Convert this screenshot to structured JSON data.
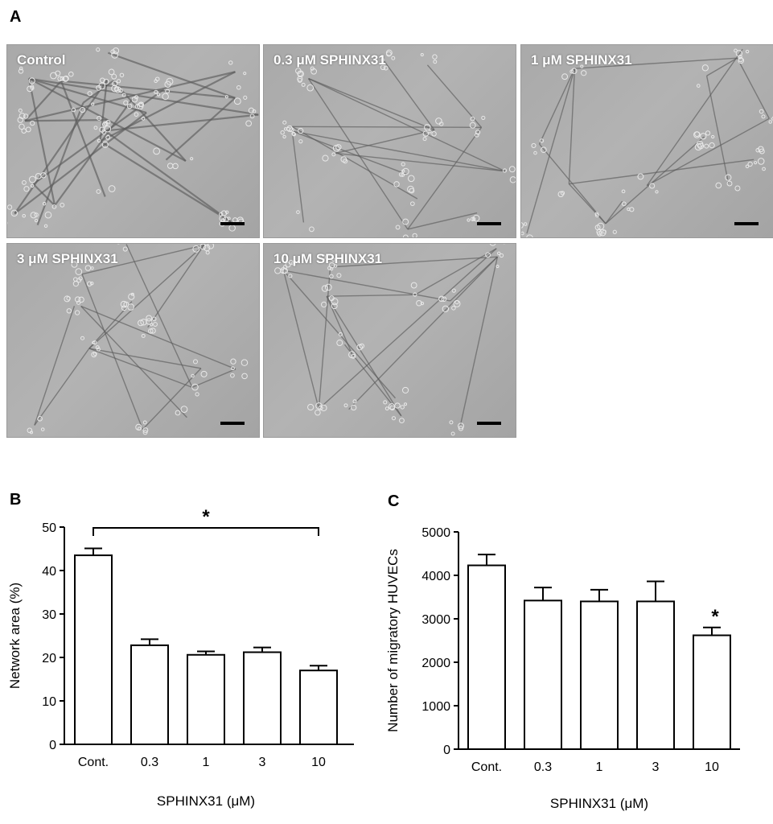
{
  "figure": {
    "panels": {
      "A": "A",
      "B": "B",
      "C": "C"
    },
    "micrographs": [
      {
        "label": "Control"
      },
      {
        "label": "0.3 μM SPHINX31"
      },
      {
        "label": "1 μM SPHINX31"
      },
      {
        "label": "3 μM SPHINX31"
      },
      {
        "label": "10 μM SPHINX31"
      }
    ]
  },
  "chart_data": [
    {
      "id": "B",
      "type": "bar",
      "categories": [
        "Cont.",
        "0.3",
        "1",
        "3",
        "10"
      ],
      "values": [
        43.5,
        22.8,
        20.6,
        21.2,
        17.0
      ],
      "errors": [
        1.6,
        1.4,
        0.8,
        1.1,
        1.1
      ],
      "xlabel": "SPHINX31 (μM)",
      "ylabel": "Network area (%)",
      "ylim": [
        0,
        50
      ],
      "yticks": [
        0,
        10,
        20,
        30,
        40,
        50
      ],
      "significance": {
        "symbol": "*",
        "from": "Cont.",
        "to": "10"
      }
    },
    {
      "id": "C",
      "type": "bar",
      "categories": [
        "Cont.",
        "0.3",
        "1",
        "3",
        "10"
      ],
      "values": [
        4230,
        3420,
        3400,
        3400,
        2620
      ],
      "errors": [
        250,
        300,
        270,
        460,
        180
      ],
      "xlabel": "SPHINX31 (μM)",
      "ylabel": "Number of migratory HUVECs",
      "ylim": [
        0,
        5000
      ],
      "yticks": [
        0,
        1000,
        2000,
        3000,
        4000,
        5000
      ],
      "significance": {
        "symbol": "*",
        "on": "10"
      }
    }
  ]
}
